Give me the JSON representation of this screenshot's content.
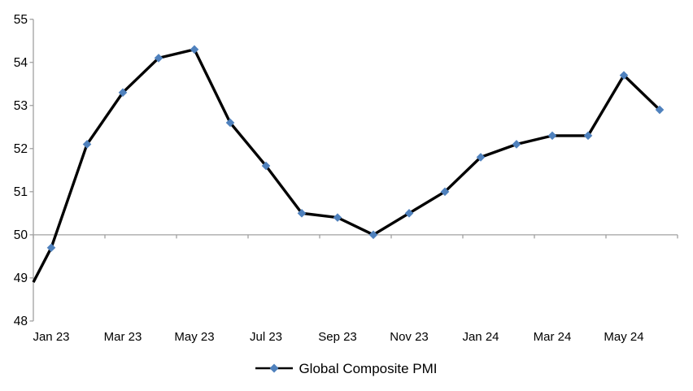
{
  "chart_data": {
    "type": "line",
    "title": "",
    "categories": [
      "Jan 23",
      "Feb 23",
      "Mar 23",
      "Apr 23",
      "May 23",
      "Jun 23",
      "Jul 23",
      "Aug 23",
      "Sep 23",
      "Oct 23",
      "Nov 23",
      "Dec 23",
      "Jan 24",
      "Feb 24",
      "Mar 24",
      "Apr 24",
      "May 24",
      "Jun 24"
    ],
    "series": [
      {
        "name": "Global Composite PMI",
        "values": [
          49.7,
          52.1,
          53.3,
          54.1,
          54.3,
          52.6,
          51.6,
          50.5,
          50.4,
          50.0,
          50.5,
          51.0,
          51.8,
          52.1,
          52.3,
          52.3,
          53.7,
          52.9
        ],
        "line_color": "#000000",
        "marker": "diamond",
        "marker_color": "#4F81BD"
      }
    ],
    "left_edge_lead_in_value": 48.9,
    "xlabel": "",
    "ylabel": "",
    "ylim": [
      48,
      55
    ],
    "y_tick_step": 1,
    "y_tick_labels": [
      "55",
      "54",
      "53",
      "52",
      "51",
      "50",
      "49",
      "48"
    ],
    "x_tick_labels": [
      "Jan 23",
      "Mar 23",
      "May 23",
      "Jul 23",
      "Sep 23",
      "Nov 23",
      "Jan 24",
      "Mar 24",
      "May 24"
    ],
    "x_label_every_n_categories": 2,
    "category_axis_cross_value": 50,
    "grid": "off",
    "legend_position": "bottom-center"
  },
  "legend": {
    "label": "Global Composite PMI"
  },
  "colors": {
    "axis": "#a0a0a0",
    "series_line": "#000000",
    "marker_fill": "#4F81BD",
    "text": "#000000"
  }
}
